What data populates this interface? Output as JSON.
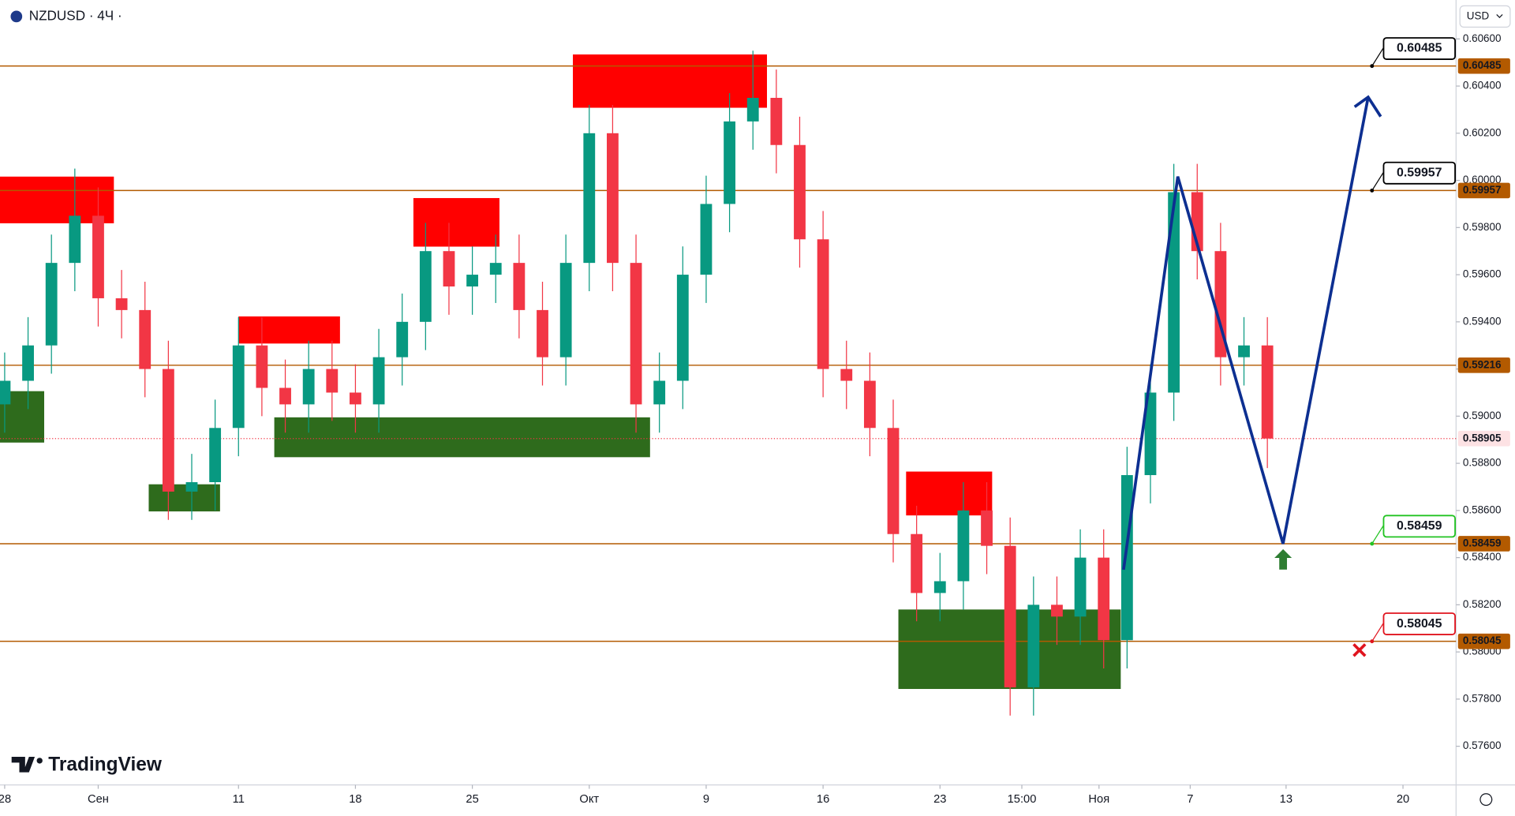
{
  "chart_data": {
    "type": "candlestick",
    "title": "NZDUSD · 4Ч ·",
    "currency": "USD",
    "brand": "TradingView",
    "x": [
      0,
      1,
      2,
      3,
      4,
      5,
      6,
      7,
      8,
      9,
      10,
      11,
      12,
      13,
      14,
      15,
      16,
      17,
      18,
      19,
      20,
      21,
      22,
      23,
      24,
      25,
      26,
      27,
      28,
      29,
      30,
      31,
      32,
      33,
      34,
      35,
      36,
      37,
      38,
      39,
      40,
      41,
      42,
      43,
      44,
      45,
      46,
      47,
      48,
      49,
      50,
      51,
      52,
      53,
      54
    ],
    "open": [
      0.5905,
      0.5915,
      0.593,
      0.5965,
      0.5985,
      0.595,
      0.5945,
      0.592,
      0.5868,
      0.5872,
      0.5895,
      0.593,
      0.5912,
      0.5905,
      0.592,
      0.591,
      0.5905,
      0.5925,
      0.594,
      0.597,
      0.5955,
      0.596,
      0.5965,
      0.5945,
      0.5925,
      0.5965,
      0.602,
      0.5965,
      0.5905,
      0.5915,
      0.596,
      0.599,
      0.6025,
      0.6035,
      0.6015,
      0.5975,
      0.592,
      0.5915,
      0.5895,
      0.585,
      0.5825,
      0.583,
      0.586,
      0.5845,
      0.5785,
      0.582,
      0.5815,
      0.584,
      0.5805,
      0.5875,
      0.591,
      0.5995,
      0.597,
      0.5925,
      0.593
    ],
    "high": [
      0.5927,
      0.5942,
      0.5977,
      0.6005,
      0.5997,
      0.5962,
      0.5957,
      0.5932,
      0.5884,
      0.5907,
      0.5942,
      0.5942,
      0.5924,
      0.5932,
      0.5932,
      0.5922,
      0.5937,
      0.5952,
      0.5982,
      0.5982,
      0.5972,
      0.5977,
      0.5977,
      0.5957,
      0.5977,
      0.6032,
      0.6032,
      0.5977,
      0.5927,
      0.5972,
      0.6002,
      0.6037,
      0.6055,
      0.6047,
      0.6027,
      0.5987,
      0.5932,
      0.5927,
      0.5907,
      0.5862,
      0.5842,
      0.5872,
      0.5872,
      0.5857,
      0.5832,
      0.5832,
      0.5852,
      0.5852,
      0.5887,
      0.5922,
      0.6007,
      0.6007,
      0.5982,
      0.5942,
      0.5942
    ],
    "low": [
      0.5893,
      0.5903,
      0.5918,
      0.5953,
      0.5938,
      0.5933,
      0.5908,
      0.5856,
      0.5856,
      0.586,
      0.5883,
      0.59,
      0.5893,
      0.5893,
      0.5898,
      0.5893,
      0.5893,
      0.5913,
      0.5928,
      0.5943,
      0.5943,
      0.5948,
      0.5933,
      0.5913,
      0.5913,
      0.5953,
      0.5953,
      0.5893,
      0.5893,
      0.5903,
      0.5948,
      0.5978,
      0.6013,
      0.6003,
      0.5963,
      0.5908,
      0.5903,
      0.5883,
      0.5838,
      0.5813,
      0.5813,
      0.5818,
      0.5833,
      0.5773,
      0.5773,
      0.5803,
      0.5803,
      0.5793,
      0.5793,
      0.5863,
      0.5898,
      0.5958,
      0.5913,
      0.5913,
      0.5878
    ],
    "close": [
      0.5915,
      0.593,
      0.5965,
      0.5985,
      0.595,
      0.5945,
      0.592,
      0.5868,
      0.5872,
      0.5895,
      0.593,
      0.5912,
      0.5905,
      0.592,
      0.591,
      0.5905,
      0.5925,
      0.594,
      0.597,
      0.5955,
      0.596,
      0.5965,
      0.5945,
      0.5925,
      0.5965,
      0.602,
      0.5965,
      0.5905,
      0.5915,
      0.596,
      0.599,
      0.6025,
      0.6035,
      0.6015,
      0.5975,
      0.592,
      0.5915,
      0.5895,
      0.585,
      0.5825,
      0.583,
      0.586,
      0.5845,
      0.5785,
      0.582,
      0.5815,
      0.584,
      0.5805,
      0.5875,
      0.591,
      0.5995,
      0.597,
      0.5925,
      0.593,
      0.58905
    ],
    "up_color": "#089981",
    "down_color": "#f23645",
    "xlim": [
      -0.2,
      62.07
    ],
    "xticks": [
      {
        "value": 0,
        "label": "28"
      },
      {
        "value": 4,
        "label": "Сен"
      },
      {
        "value": 10,
        "label": "11"
      },
      {
        "value": 15,
        "label": "18"
      },
      {
        "value": 20,
        "label": "25"
      },
      {
        "value": 25,
        "label": "Окт"
      },
      {
        "value": 30,
        "label": "9"
      },
      {
        "value": 35,
        "label": "16"
      },
      {
        "value": 40,
        "label": "23"
      },
      {
        "value": 43.5,
        "label": "15:00"
      },
      {
        "value": 46.8,
        "label": "Ноя"
      },
      {
        "value": 50.7,
        "label": "7"
      },
      {
        "value": 54.8,
        "label": "13"
      },
      {
        "value": 59.8,
        "label": "20"
      }
    ],
    "ylim": [
      0.5744,
      0.60765
    ],
    "yticks": [
      {
        "value": 0.606,
        "label": "0.60600"
      },
      {
        "value": 0.604,
        "label": "0.60400"
      },
      {
        "value": 0.602,
        "label": "0.60200"
      },
      {
        "value": 0.6,
        "label": "0.60000"
      },
      {
        "value": 0.598,
        "label": "0.59800"
      },
      {
        "value": 0.596,
        "label": "0.59600"
      },
      {
        "value": 0.594,
        "label": "0.59400"
      },
      {
        "value": 0.592,
        "label": "0.59200"
      },
      {
        "value": 0.59,
        "label": "0.59000"
      },
      {
        "value": 0.588,
        "label": "0.58800"
      },
      {
        "value": 0.586,
        "label": "0.58600"
      },
      {
        "value": 0.584,
        "label": "0.58400"
      },
      {
        "value": 0.582,
        "label": "0.58200"
      },
      {
        "value": 0.58,
        "label": "0.58000"
      },
      {
        "value": 0.578,
        "label": "0.57800"
      },
      {
        "value": 0.576,
        "label": "0.57600"
      }
    ],
    "zones": [
      {
        "x": [
          -0.2,
          4.67
        ],
        "y": [
          0.59818,
          0.60016
        ],
        "color": "#ff0000"
      },
      {
        "x": [
          17.48,
          21.16
        ],
        "y": [
          0.59719,
          0.59925
        ],
        "color": "#ff0000"
      },
      {
        "x": [
          10.0,
          14.34
        ],
        "y": [
          0.59308,
          0.59423
        ],
        "color": "#ff0000"
      },
      {
        "x": [
          24.3,
          32.6
        ],
        "y": [
          0.60308,
          0.60534
        ],
        "color": "#ff0000"
      },
      {
        "x": [
          38.55,
          42.23
        ],
        "y": [
          0.58579,
          0.58765
        ],
        "color": "#ff0000"
      },
      {
        "x": [
          -0.2,
          1.69
        ],
        "y": [
          0.58888,
          0.59106
        ],
        "color": "#2e6b1c"
      },
      {
        "x": [
          6.16,
          9.21
        ],
        "y": [
          0.58596,
          0.58711
        ],
        "color": "#2e6b1c"
      },
      {
        "x": [
          11.53,
          27.6
        ],
        "y": [
          0.58826,
          0.58995
        ],
        "color": "#2e6b1c"
      },
      {
        "x": [
          38.22,
          47.73
        ],
        "y": [
          0.57843,
          0.5818
        ],
        "color": "#2e6b1c"
      }
    ],
    "levels": [
      {
        "value": 0.60485,
        "color": "#b35a00",
        "callout": "#000000"
      },
      {
        "value": 0.59957,
        "color": "#b35a00",
        "callout": "#000000"
      },
      {
        "value": 0.59216,
        "color": "#b35a00"
      },
      {
        "value": 0.58459,
        "color": "#b35a00",
        "callout": "#22c322"
      },
      {
        "value": 0.58045,
        "color": "#b35a00",
        "callout": "#e0141e"
      }
    ],
    "last_price": 0.58905,
    "last_color": "#f23645",
    "projection": {
      "x": [
        47.85,
        50.17,
        54.67,
        58.31
      ],
      "y": [
        0.58349,
        0.60016,
        0.58459,
        0.60353
      ],
      "color": "#0d2f91"
    }
  }
}
